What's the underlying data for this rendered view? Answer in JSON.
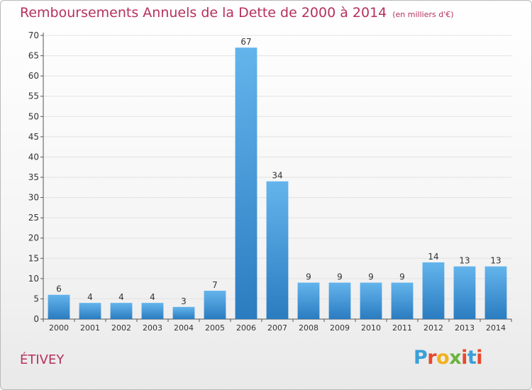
{
  "header": {
    "title": "Remboursements Annuels de la Dette de 2000 à 2014",
    "unit": "(en milliers d'€)"
  },
  "commune": "ÉTIVEY",
  "logo": {
    "text": "Proxiti",
    "colors": [
      "#3aa0d8",
      "#e8482b",
      "#f0b21c",
      "#6bb43f",
      "#e8482b",
      "#3aa0d8",
      "#e8482b"
    ]
  },
  "chart_data": {
    "type": "bar",
    "categories": [
      "2000",
      "2001",
      "2002",
      "2003",
      "2004",
      "2005",
      "2006",
      "2007",
      "2008",
      "2009",
      "2010",
      "2011",
      "2012",
      "2013",
      "2014"
    ],
    "values": [
      6,
      4,
      4,
      4,
      3,
      7,
      67,
      34,
      9,
      9,
      9,
      9,
      14,
      13,
      13
    ],
    "ylim": [
      0,
      70
    ],
    "yticks": [
      0,
      5,
      10,
      15,
      20,
      25,
      30,
      35,
      40,
      45,
      50,
      55,
      60,
      65,
      70
    ],
    "grid": true,
    "bar_color_top": "#64b4ec",
    "bar_color_bottom": "#2a7cc0"
  }
}
